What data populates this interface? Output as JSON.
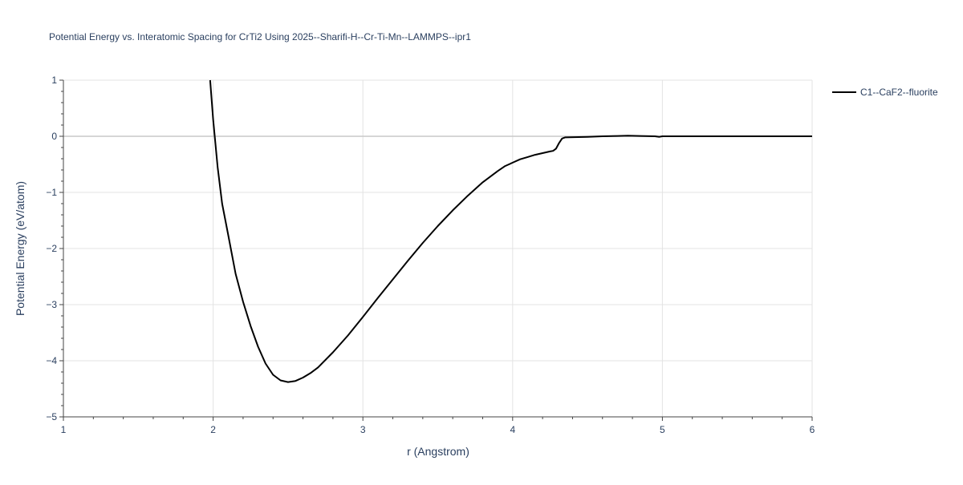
{
  "chart_data": {
    "type": "line",
    "title": "Potential Energy vs. Interatomic Spacing for CrTi2 Using 2025--Sharifi-H--Cr-Ti-Mn--LAMMPS--ipr1",
    "xlabel": "r (Angstrom)",
    "ylabel": "Potential Energy (eV/atom)",
    "xlim": [
      1,
      6
    ],
    "ylim": [
      -5,
      1
    ],
    "xticks": [
      1,
      2,
      3,
      4,
      5,
      6
    ],
    "xtick_labels": [
      "1",
      "2",
      "3",
      "4",
      "5",
      "6"
    ],
    "yticks": [
      1,
      0,
      -1,
      -2,
      -3,
      -4,
      -5
    ],
    "ytick_labels": [
      "1",
      "0",
      "−1",
      "−2",
      "−3",
      "−4",
      "−5"
    ],
    "grid": true,
    "legend_position": "top-right, outside plot",
    "series": [
      {
        "name": "C1--CaF2--fluorite",
        "color": "#000000",
        "x": [
          1.98,
          2.0,
          2.03,
          2.06,
          2.1,
          2.15,
          2.2,
          2.25,
          2.3,
          2.35,
          2.4,
          2.45,
          2.5,
          2.55,
          2.6,
          2.65,
          2.7,
          2.8,
          2.9,
          3.0,
          3.1,
          3.2,
          3.3,
          3.4,
          3.5,
          3.6,
          3.7,
          3.8,
          3.85,
          3.9,
          3.95,
          4.0,
          4.05,
          4.1,
          4.15,
          4.2,
          4.25,
          4.27,
          4.29,
          4.31,
          4.33,
          4.35,
          4.5,
          4.6,
          4.7,
          4.77,
          4.85,
          4.95,
          4.98,
          5.0,
          5.5,
          6.0
        ],
        "y": [
          1.0,
          0.3,
          -0.55,
          -1.2,
          -1.75,
          -2.45,
          -2.95,
          -3.38,
          -3.75,
          -4.05,
          -4.25,
          -4.35,
          -4.38,
          -4.36,
          -4.3,
          -4.22,
          -4.12,
          -3.85,
          -3.55,
          -3.22,
          -2.88,
          -2.55,
          -2.22,
          -1.9,
          -1.6,
          -1.32,
          -1.06,
          -0.82,
          -0.72,
          -0.62,
          -0.53,
          -0.47,
          -0.41,
          -0.37,
          -0.33,
          -0.3,
          -0.27,
          -0.26,
          -0.22,
          -0.12,
          -0.04,
          -0.02,
          -0.01,
          0.0,
          0.005,
          0.01,
          0.005,
          0.0,
          -0.01,
          0.0,
          0.0,
          0.0
        ]
      }
    ]
  }
}
